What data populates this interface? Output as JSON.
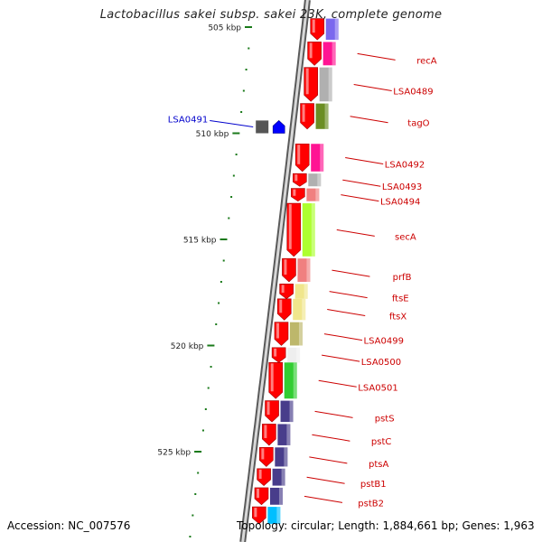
{
  "title": "Lactobacillus sakei subsp. sakei 23K, complete genome",
  "footer": {
    "accession": "Accession: NC_007576",
    "topology": "Topology: circular; Length: 1,884,661 bp; Genes: 1,963"
  },
  "colors": {
    "backbone": "#8c8c8c",
    "cds_reverse": "#ff0000",
    "tick": "#1a7a1a",
    "label_reverse": "#cc0000",
    "label_forward": "#0000cc"
  },
  "scale": {
    "unit": "kbp",
    "major_ticks": [
      {
        "kbp": 505,
        "label": "505 kbp"
      },
      {
        "kbp": 510,
        "label": "510 kbp"
      },
      {
        "kbp": 515,
        "label": "515 kbp"
      },
      {
        "kbp": 520,
        "label": "520 kbp"
      },
      {
        "kbp": 525,
        "label": "525 kbp"
      }
    ]
  },
  "genes": [
    {
      "name": "",
      "strand": "reverse",
      "start_kbp": 504.6,
      "end_kbp": 505.6,
      "cog_color": "#7b68ee"
    },
    {
      "name": "recA",
      "strand": "reverse",
      "start_kbp": 505.7,
      "end_kbp": 506.8,
      "cog_color": "#ff1493"
    },
    {
      "name": "LSA0489",
      "strand": "reverse",
      "start_kbp": 506.9,
      "end_kbp": 508.5,
      "cog_color": "#b0b0b0"
    },
    {
      "name": "tagO",
      "strand": "reverse",
      "start_kbp": 508.6,
      "end_kbp": 509.8,
      "cog_color": "#6b8e23"
    },
    {
      "name": "LSA0491",
      "strand": "forward",
      "start_kbp": 509.4,
      "end_kbp": 510.0,
      "cog_color": "#555555"
    },
    {
      "name": "LSA0492",
      "strand": "reverse",
      "start_kbp": 510.5,
      "end_kbp": 511.8,
      "cog_color": "#ff1493"
    },
    {
      "name": "LSA0493",
      "strand": "reverse",
      "start_kbp": 511.9,
      "end_kbp": 512.5,
      "cog_color": "#b0b0b0"
    },
    {
      "name": "LSA0494",
      "strand": "reverse",
      "start_kbp": 512.6,
      "end_kbp": 513.2,
      "cog_color": "#f08080"
    },
    {
      "name": "secA",
      "strand": "reverse",
      "start_kbp": 513.3,
      "end_kbp": 515.8,
      "cog_color": "#adff2f"
    },
    {
      "name": "prfB",
      "strand": "reverse",
      "start_kbp": 515.9,
      "end_kbp": 517.0,
      "cog_color": "#f08080"
    },
    {
      "name": "ftsE",
      "strand": "reverse",
      "start_kbp": 517.1,
      "end_kbp": 517.8,
      "cog_color": "#f0e68c"
    },
    {
      "name": "ftsX",
      "strand": "reverse",
      "start_kbp": 517.8,
      "end_kbp": 518.8,
      "cog_color": "#f0e68c"
    },
    {
      "name": "LSA0499",
      "strand": "reverse",
      "start_kbp": 518.9,
      "end_kbp": 520.0,
      "cog_color": "#bdb76b"
    },
    {
      "name": "LSA0500",
      "strand": "reverse",
      "start_kbp": 520.1,
      "end_kbp": 520.8,
      "cog_color": "#eeeeee"
    },
    {
      "name": "LSA0501",
      "strand": "reverse",
      "start_kbp": 520.8,
      "end_kbp": 522.5,
      "cog_color": "#32cd32"
    },
    {
      "name": "pstS",
      "strand": "reverse",
      "start_kbp": 522.6,
      "end_kbp": 523.6,
      "cog_color": "#483d8b"
    },
    {
      "name": "pstC",
      "strand": "reverse",
      "start_kbp": 523.7,
      "end_kbp": 524.7,
      "cog_color": "#483d8b"
    },
    {
      "name": "ptsA",
      "strand": "reverse",
      "start_kbp": 524.8,
      "end_kbp": 525.7,
      "cog_color": "#483d8b"
    },
    {
      "name": "pstB1",
      "strand": "reverse",
      "start_kbp": 525.8,
      "end_kbp": 526.6,
      "cog_color": "#483d8b"
    },
    {
      "name": "pstB2",
      "strand": "reverse",
      "start_kbp": 526.7,
      "end_kbp": 527.5,
      "cog_color": "#483d8b"
    },
    {
      "name": "",
      "strand": "reverse",
      "start_kbp": 527.6,
      "end_kbp": 528.4,
      "cog_color": "#00bfff"
    }
  ]
}
